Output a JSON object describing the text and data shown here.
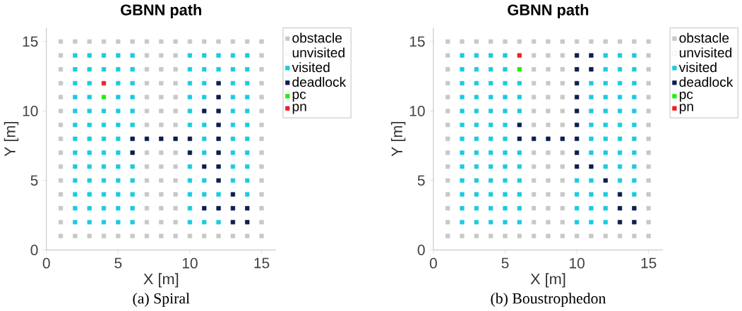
{
  "chart_data": [
    {
      "type": "scatter",
      "title": "GBNN path",
      "xlabel": "X [m]",
      "ylabel": "Y [m]",
      "xlim": [
        0,
        16
      ],
      "ylim": [
        0,
        16
      ],
      "xticks": [
        0,
        5,
        10,
        15
      ],
      "yticks": [
        0,
        5,
        10,
        15
      ],
      "marker": "square",
      "legend": "top right",
      "annotations": [
        "(a) Spiral"
      ],
      "series": [
        {
          "name": "obstacle",
          "color": "#c8c8c8",
          "x": [
            1,
            2,
            3,
            4,
            5,
            6,
            7,
            8,
            9,
            10,
            11,
            12,
            13,
            14,
            15,
            1,
            2,
            3,
            4,
            5,
            6,
            7,
            8,
            9,
            10,
            11,
            12,
            13,
            14,
            15,
            1,
            1,
            1,
            1,
            1,
            1,
            1,
            1,
            1,
            1,
            1,
            1,
            1,
            15,
            15,
            15,
            15,
            15,
            15,
            15,
            15,
            15,
            15,
            15,
            15,
            15,
            7,
            7,
            7,
            7,
            7,
            7,
            7,
            7,
            7,
            7,
            7,
            7,
            8,
            8,
            8,
            8,
            8,
            8,
            8,
            8,
            8,
            8,
            8,
            8,
            9,
            9,
            9,
            9,
            9,
            9,
            9,
            9,
            9,
            9,
            9,
            9
          ],
          "values": [
            1,
            1,
            1,
            1,
            1,
            1,
            1,
            1,
            1,
            1,
            1,
            1,
            1,
            1,
            1,
            15,
            15,
            15,
            15,
            15,
            15,
            15,
            15,
            15,
            15,
            15,
            15,
            15,
            15,
            15,
            2,
            3,
            4,
            5,
            6,
            7,
            8,
            9,
            10,
            11,
            12,
            13,
            14,
            2,
            3,
            4,
            5,
            6,
            7,
            8,
            9,
            10,
            11,
            12,
            13,
            14,
            2,
            3,
            4,
            5,
            6,
            7,
            9,
            10,
            11,
            12,
            13,
            14,
            2,
            3,
            4,
            5,
            6,
            7,
            9,
            10,
            11,
            12,
            13,
            14,
            2,
            3,
            4,
            5,
            6,
            7,
            9,
            10,
            11,
            12,
            13,
            14
          ]
        },
        {
          "name": "unvisited",
          "color": "#ffffff"
        },
        {
          "name": "visited",
          "color": "#1ccbe0",
          "x": [
            2,
            3,
            4,
            5,
            6,
            10,
            11,
            12,
            13,
            14,
            2,
            3,
            4,
            5,
            6,
            10,
            11,
            12,
            13,
            14,
            2,
            3,
            5,
            6,
            10,
            11,
            13,
            14,
            2,
            3,
            5,
            6,
            10,
            11,
            13,
            14,
            2,
            3,
            4,
            5,
            6,
            10,
            13,
            14,
            2,
            3,
            4,
            5,
            6,
            10,
            11,
            13,
            14,
            2,
            3,
            4,
            5,
            11,
            13,
            14,
            2,
            3,
            4,
            5,
            11,
            13,
            14,
            2,
            3,
            4,
            5,
            6,
            10,
            13,
            14,
            2,
            3,
            4,
            5,
            6,
            10,
            11,
            13,
            14,
            2,
            3,
            4,
            5,
            6,
            10,
            11,
            12,
            14,
            2,
            3,
            4,
            5,
            6,
            10,
            2,
            3,
            4,
            5,
            6,
            10,
            11,
            12
          ],
          "values": [
            14,
            14,
            14,
            14,
            14,
            14,
            14,
            14,
            14,
            14,
            13,
            13,
            13,
            13,
            13,
            13,
            13,
            13,
            13,
            13,
            12,
            12,
            12,
            12,
            12,
            12,
            12,
            12,
            11,
            11,
            11,
            11,
            11,
            11,
            11,
            11,
            10,
            10,
            10,
            10,
            10,
            10,
            10,
            10,
            9,
            9,
            9,
            9,
            9,
            9,
            9,
            9,
            9,
            8,
            8,
            8,
            8,
            8,
            8,
            8,
            7,
            7,
            7,
            7,
            7,
            7,
            7,
            6,
            6,
            6,
            6,
            6,
            6,
            6,
            6,
            5,
            5,
            5,
            5,
            5,
            5,
            5,
            5,
            5,
            4,
            4,
            4,
            4,
            4,
            4,
            4,
            4,
            4,
            3,
            3,
            3,
            3,
            3,
            3,
            2,
            2,
            2,
            2,
            2,
            2,
            2,
            2
          ]
        },
        {
          "name": "deadlock",
          "color": "#0b1f4f",
          "x": [
            12,
            12,
            11,
            12,
            12,
            6,
            7,
            8,
            9,
            10,
            12,
            6,
            10,
            12,
            11,
            12,
            12,
            13,
            11,
            12,
            13,
            14,
            13,
            14
          ],
          "values": [
            12,
            11,
            10,
            10,
            9,
            8,
            8,
            8,
            8,
            8,
            8,
            7,
            7,
            7,
            6,
            6,
            5,
            4,
            3,
            3,
            3,
            3,
            2,
            2
          ]
        },
        {
          "name": "pc",
          "color": "#22ee11",
          "x": [
            4
          ],
          "values": [
            11
          ]
        },
        {
          "name": "pn",
          "color": "#ee2222",
          "x": [
            4
          ],
          "values": [
            12
          ]
        }
      ]
    },
    {
      "type": "scatter",
      "title": "GBNN path",
      "xlabel": "X [m]",
      "ylabel": "Y [m]",
      "xlim": [
        0,
        16
      ],
      "ylim": [
        0,
        16
      ],
      "xticks": [
        0,
        5,
        10,
        15
      ],
      "yticks": [
        0,
        5,
        10,
        15
      ],
      "marker": "square",
      "legend": "top right",
      "annotations": [
        "(b) Boustrophedon"
      ],
      "series": [
        {
          "name": "obstacle",
          "color": "#c8c8c8",
          "x": [
            1,
            2,
            3,
            4,
            5,
            6,
            7,
            8,
            9,
            10,
            11,
            12,
            13,
            14,
            15,
            1,
            2,
            3,
            4,
            5,
            6,
            7,
            8,
            9,
            10,
            11,
            12,
            13,
            14,
            15,
            1,
            1,
            1,
            1,
            1,
            1,
            1,
            1,
            1,
            1,
            1,
            1,
            1,
            15,
            15,
            15,
            15,
            15,
            15,
            15,
            15,
            15,
            15,
            15,
            15,
            15,
            7,
            7,
            7,
            7,
            7,
            7,
            7,
            7,
            7,
            7,
            7,
            7,
            8,
            8,
            8,
            8,
            8,
            8,
            8,
            8,
            8,
            8,
            8,
            8,
            9,
            9,
            9,
            9,
            9,
            9,
            9,
            9,
            9,
            9,
            9,
            9
          ],
          "values": [
            1,
            1,
            1,
            1,
            1,
            1,
            1,
            1,
            1,
            1,
            1,
            1,
            1,
            1,
            1,
            15,
            15,
            15,
            15,
            15,
            15,
            15,
            15,
            15,
            15,
            15,
            15,
            15,
            15,
            15,
            2,
            3,
            4,
            5,
            6,
            7,
            8,
            9,
            10,
            11,
            12,
            13,
            14,
            2,
            3,
            4,
            5,
            6,
            7,
            8,
            9,
            10,
            11,
            12,
            13,
            14,
            2,
            3,
            4,
            5,
            6,
            7,
            9,
            10,
            11,
            12,
            13,
            14,
            2,
            3,
            4,
            5,
            6,
            7,
            9,
            10,
            11,
            12,
            13,
            14,
            2,
            3,
            4,
            5,
            6,
            7,
            9,
            10,
            11,
            12,
            13,
            14
          ]
        },
        {
          "name": "unvisited",
          "color": "#ffffff"
        },
        {
          "name": "visited",
          "color": "#1ccbe0",
          "x": [
            2,
            3,
            4,
            5,
            12,
            13,
            14,
            2,
            3,
            4,
            5,
            12,
            13,
            14,
            2,
            3,
            4,
            5,
            6,
            11,
            12,
            13,
            14,
            2,
            3,
            4,
            5,
            6,
            11,
            12,
            13,
            14,
            2,
            3,
            4,
            5,
            6,
            11,
            12,
            13,
            14,
            2,
            3,
            4,
            5,
            11,
            12,
            13,
            14,
            2,
            3,
            4,
            5,
            11,
            12,
            13,
            14,
            2,
            3,
            4,
            5,
            6,
            11,
            12,
            13,
            14,
            2,
            3,
            4,
            5,
            6,
            12,
            13,
            14,
            2,
            3,
            4,
            5,
            6,
            10,
            11,
            13,
            14,
            2,
            3,
            4,
            5,
            6,
            10,
            11,
            12,
            14,
            2,
            3,
            4,
            5,
            6,
            10,
            11,
            12,
            2,
            3,
            4,
            5,
            6,
            10,
            11,
            12
          ],
          "values": [
            14,
            14,
            14,
            14,
            14,
            14,
            14,
            13,
            13,
            13,
            13,
            13,
            13,
            13,
            12,
            12,
            12,
            12,
            12,
            12,
            12,
            12,
            12,
            11,
            11,
            11,
            11,
            11,
            11,
            11,
            11,
            11,
            10,
            10,
            10,
            10,
            10,
            10,
            10,
            10,
            10,
            9,
            9,
            9,
            9,
            9,
            9,
            9,
            9,
            8,
            8,
            8,
            8,
            8,
            8,
            8,
            8,
            7,
            7,
            7,
            7,
            7,
            7,
            7,
            7,
            7,
            6,
            6,
            6,
            6,
            6,
            6,
            6,
            6,
            5,
            5,
            5,
            5,
            5,
            5,
            5,
            5,
            5,
            4,
            4,
            4,
            4,
            4,
            4,
            4,
            4,
            4,
            3,
            3,
            3,
            3,
            3,
            3,
            3,
            3,
            2,
            2,
            2,
            2,
            2,
            2,
            2,
            2
          ]
        },
        {
          "name": "deadlock",
          "color": "#0b1f4f",
          "x": [
            10,
            11,
            10,
            11,
            10,
            10,
            10,
            6,
            10,
            6,
            7,
            8,
            9,
            10,
            10,
            10,
            11,
            12,
            13,
            13,
            14,
            13,
            14
          ],
          "values": [
            14,
            14,
            13,
            13,
            12,
            11,
            10,
            9,
            9,
            8,
            8,
            8,
            8,
            8,
            7,
            6,
            6,
            5,
            4,
            3,
            3,
            2,
            2
          ]
        },
        {
          "name": "pc",
          "color": "#22ee11",
          "x": [
            6
          ],
          "values": [
            13
          ]
        },
        {
          "name": "pn",
          "color": "#ee2222",
          "x": [
            6
          ],
          "values": [
            14
          ]
        }
      ]
    }
  ]
}
